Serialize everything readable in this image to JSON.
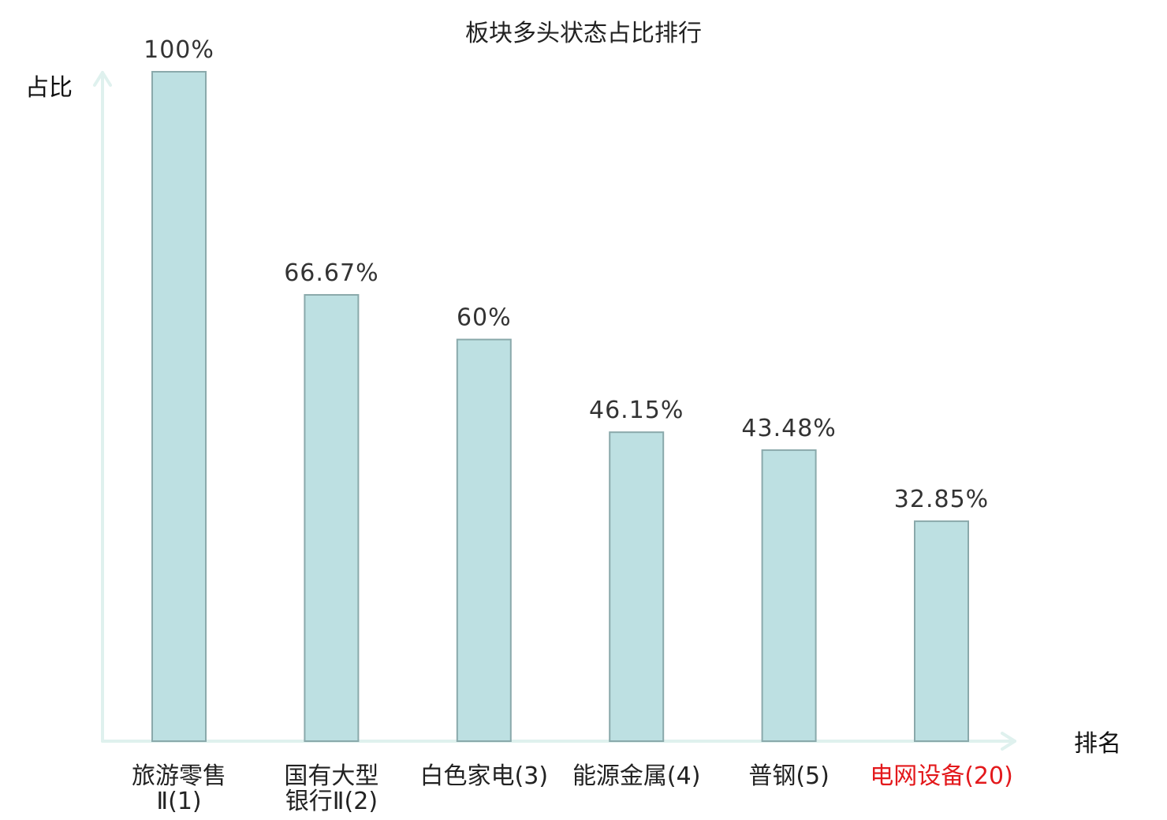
{
  "chart_data": {
    "type": "bar",
    "title": "板块多头状态占比排行",
    "ylabel": "占比",
    "xlabel": "排名",
    "ylim": [
      0,
      100
    ],
    "grid": false,
    "legend": "none",
    "colors": {
      "bar_fill": "#bde0e2",
      "bar_stroke": "#8aa9ab",
      "axis": "#dff1ee",
      "label_default": "#222222",
      "label_highlight": "#e3191c"
    },
    "categories": [
      {
        "lines": [
          "旅游零售",
          "Ⅱ(1)"
        ],
        "highlight": false
      },
      {
        "lines": [
          "国有大型",
          "银行Ⅱ(2)"
        ],
        "highlight": false
      },
      {
        "lines": [
          "白色家电(3)"
        ],
        "highlight": false
      },
      {
        "lines": [
          "能源金属(4)"
        ],
        "highlight": false
      },
      {
        "lines": [
          "普钢(5)"
        ],
        "highlight": false
      },
      {
        "lines": [
          "电网设备(20)"
        ],
        "highlight": true
      }
    ],
    "values": [
      100,
      66.67,
      60,
      46.15,
      43.48,
      32.85
    ],
    "value_labels": [
      "100%",
      "66.67%",
      "60%",
      "46.15%",
      "43.48%",
      "32.85%"
    ]
  }
}
